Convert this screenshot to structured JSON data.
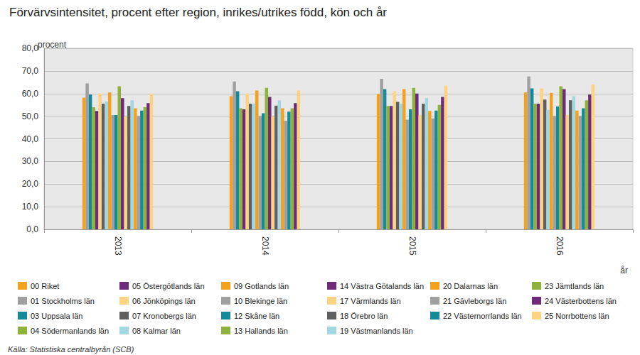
{
  "chart_data": {
    "type": "bar",
    "title": "Förvärvsintensitet, procent efter region, inrikes/utrikes född, kön och år",
    "y_label": "procent",
    "x_label": "år",
    "source": "Källa: Statistiska centralbyrån (SCB)",
    "categories": [
      "2013",
      "2014",
      "2015",
      "2016"
    ],
    "ylim": [
      0,
      80
    ],
    "yticks": [
      {
        "value": 0,
        "label": "0,0"
      },
      {
        "value": 10,
        "label": "10,0"
      },
      {
        "value": 20,
        "label": "20,0"
      },
      {
        "value": 30,
        "label": "30,0"
      },
      {
        "value": 40,
        "label": "40,0"
      },
      {
        "value": 50,
        "label": "50,0"
      },
      {
        "value": 60,
        "label": "60,0"
      },
      {
        "value": 70,
        "label": "70,0"
      },
      {
        "value": 80,
        "label": "80,0"
      }
    ],
    "grid": true,
    "legend": "bottom",
    "series": [
      {
        "name": "00 Riket",
        "color": "#f4a11e",
        "values": [
          58.2,
          58.8,
          59.8,
          60.5
        ]
      },
      {
        "name": "01 Stockholms län",
        "color": "#a0a0a0",
        "values": [
          64.5,
          65.3,
          66.5,
          67.5
        ]
      },
      {
        "name": "03 Uppsala län",
        "color": "#138a99",
        "values": [
          59.5,
          61.0,
          62.0,
          62.3
        ]
      },
      {
        "name": "04 Södermanlands län",
        "color": "#8fb23c",
        "values": [
          54.0,
          53.5,
          54.5,
          55.5
        ]
      },
      {
        "name": "05 Östergötlands län",
        "color": "#6e2b7a",
        "values": [
          52.3,
          53.0,
          54.5,
          55.5
        ]
      },
      {
        "name": "06 Jönköpings län",
        "color": "#fcd383",
        "values": [
          60.0,
          60.0,
          61.0,
          62.3
        ]
      },
      {
        "name": "07 Kronobergs län",
        "color": "#5f5f5f",
        "values": [
          55.5,
          55.5,
          56.3,
          57.3
        ]
      },
      {
        "name": "08 Kalmar län",
        "color": "#a3d8e3",
        "values": [
          56.5,
          55.5,
          55.5,
          52.8
        ]
      },
      {
        "name": "09 Gotlands län",
        "color": "#f4a11e",
        "values": [
          60.5,
          61.3,
          62.0,
          60.3
        ]
      },
      {
        "name": "10 Blekinge län",
        "color": "#a0a0a0",
        "values": [
          50.5,
          50.0,
          48.5,
          50.0
        ]
      },
      {
        "name": "12 Skåne län",
        "color": "#138a99",
        "values": [
          50.5,
          51.3,
          53.0,
          54.3
        ]
      },
      {
        "name": "13 Hallands län",
        "color": "#8fb23c",
        "values": [
          63.2,
          62.5,
          62.5,
          63.2
        ]
      },
      {
        "name": "14 Västra Götalands län",
        "color": "#6e2b7a",
        "values": [
          58.0,
          58.5,
          60.0,
          62.0
        ]
      },
      {
        "name": "17 Värmlands län",
        "color": "#fcd383",
        "values": [
          50.0,
          50.0,
          50.5,
          50.5
        ]
      },
      {
        "name": "18 Örebro län",
        "color": "#5f5f5f",
        "values": [
          54.5,
          54.7,
          55.5,
          57.0
        ]
      },
      {
        "name": "19 Västmanlands län",
        "color": "#a3d8e3",
        "values": [
          57.0,
          57.0,
          58.0,
          58.8
        ]
      },
      {
        "name": "20 Dalarnas län",
        "color": "#f4a11e",
        "values": [
          53.5,
          53.5,
          52.3,
          52.5
        ]
      },
      {
        "name": "21 Gävleborgs län",
        "color": "#a0a0a0",
        "values": [
          50.0,
          48.0,
          49.0,
          50.0
        ]
      },
      {
        "name": "22 Västernorrlands län",
        "color": "#138a99",
        "values": [
          52.5,
          52.0,
          52.5,
          53.5
        ]
      },
      {
        "name": "23 Jämtlands län",
        "color": "#8fb23c",
        "values": [
          54.0,
          53.5,
          55.0,
          57.0
        ]
      },
      {
        "name": "24 Västerbottens län",
        "color": "#6e2b7a",
        "values": [
          55.8,
          55.8,
          58.5,
          59.5
        ]
      },
      {
        "name": "25 Norrbottens län",
        "color": "#fcd383",
        "values": [
          60.0,
          61.3,
          63.5,
          64.0
        ]
      }
    ]
  }
}
